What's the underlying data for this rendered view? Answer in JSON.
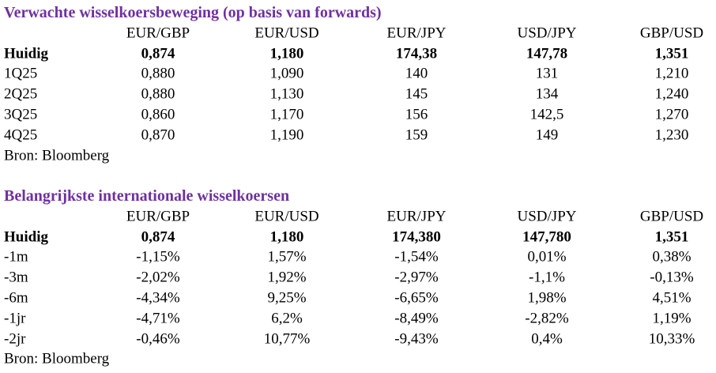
{
  "tables": [
    {
      "title": "Verwachte wisselkoersbeweging (op basis van forwards)",
      "header": [
        "EUR/GBP",
        "EUR/USD",
        "EUR/JPY",
        "USD/JPY",
        "GBP/USD"
      ],
      "rows": [
        [
          "Huidig",
          "0,874",
          "1,180",
          "174,38",
          "147,78",
          "1,351"
        ],
        [
          "1Q25",
          "0,880",
          "1,090",
          "140",
          "131",
          "1,210"
        ],
        [
          "2Q25",
          "0,880",
          "1,130",
          "145",
          "134",
          "1,240"
        ],
        [
          "3Q25",
          "0,860",
          "1,170",
          "156",
          "142,5",
          "1,270"
        ],
        [
          "4Q25",
          "0,870",
          "1,190",
          "159",
          "149",
          "1,230"
        ]
      ],
      "source": "Bron: Bloomberg"
    },
    {
      "title": "Belangrijkste internationale wisselkoersen",
      "header": [
        "EUR/GBP",
        "EUR/USD",
        "EUR/JPY",
        "USD/JPY",
        "GBP/USD"
      ],
      "rows": [
        [
          "Huidig",
          "0,874",
          "1,180",
          "174,380",
          "147,780",
          "1,351"
        ],
        [
          "-1m",
          "-1,15%",
          "1,57%",
          "-1,54%",
          "0,01%",
          "0,38%"
        ],
        [
          "-3m",
          "-2,02%",
          "1,92%",
          "-2,97%",
          "-1,1%",
          "-0,13%"
        ],
        [
          "-6m",
          "-4,34%",
          "9,25%",
          "-6,65%",
          "1,98%",
          "4,51%"
        ],
        [
          "-1jr",
          "-4,71%",
          "6,2%",
          "-8,49%",
          "-2,82%",
          "1,19%"
        ],
        [
          "-2jr",
          "-0,46%",
          "10,77%",
          "-9,43%",
          "0,4%",
          "10,33%"
        ]
      ],
      "source": "Bron: Bloomberg"
    }
  ]
}
